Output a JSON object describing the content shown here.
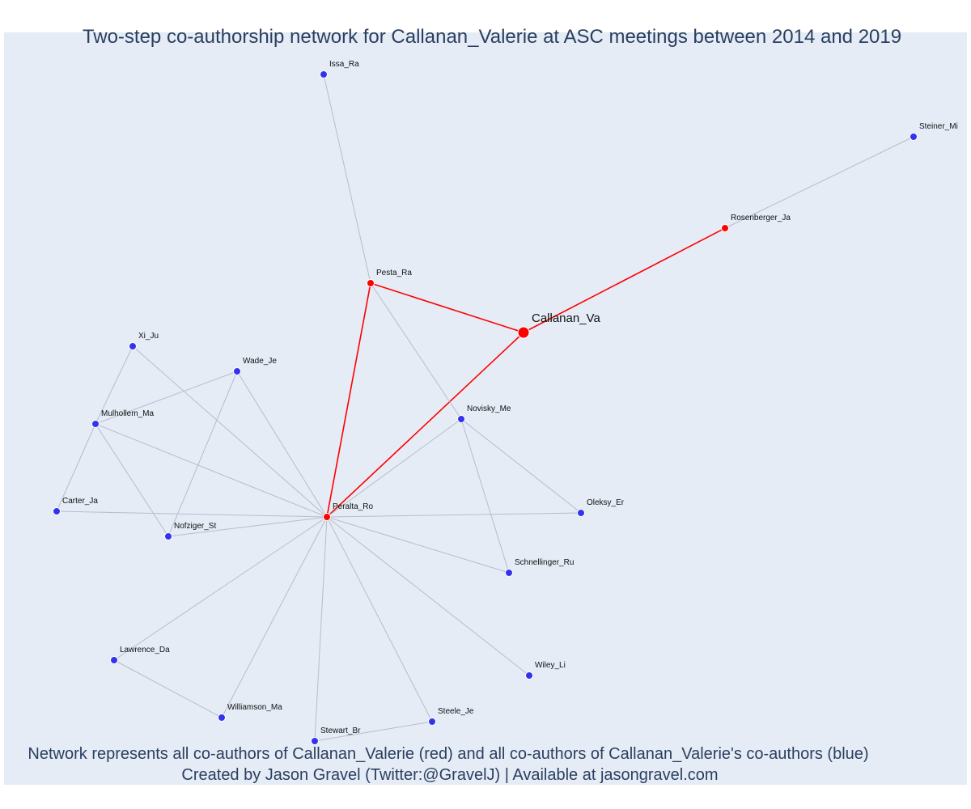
{
  "title": "Two-step co-authorship network for Callanan_Valerie at ASC meetings between 2014 and 2019",
  "caption": {
    "line1": "Network represents all co-authors of Callanan_Valerie (red) and all co-authors of Callanan_Valerie's co-authors (blue)",
    "line2": "Created by Jason Gravel (Twitter:@GravelJ) | Available at jasongravel.com"
  },
  "colors": {
    "background": "#e5ecf6",
    "first_step": "#ff0000",
    "second_step": "#3333ee",
    "edge": "#b8bccb"
  },
  "chart_data": {
    "type": "network",
    "center": "Callanan_Va",
    "nodes": [
      {
        "id": "Callanan_Va",
        "group": "center"
      },
      {
        "id": "Pesta_Ra",
        "group": "coauthor"
      },
      {
        "id": "Rosenberger_Ja",
        "group": "coauthor"
      },
      {
        "id": "Peralta_Ro",
        "group": "coauthor"
      },
      {
        "id": "Issa_Ra",
        "group": "second"
      },
      {
        "id": "Steiner_Mi",
        "group": "second"
      },
      {
        "id": "Xi_Ju",
        "group": "second"
      },
      {
        "id": "Wade_Je",
        "group": "second"
      },
      {
        "id": "Mulhollem_Ma",
        "group": "second"
      },
      {
        "id": "Novisky_Me",
        "group": "second"
      },
      {
        "id": "Carter_Ja",
        "group": "second"
      },
      {
        "id": "Nofziger_St",
        "group": "second"
      },
      {
        "id": "Oleksy_Er",
        "group": "second"
      },
      {
        "id": "Schnellinger_Ru",
        "group": "second"
      },
      {
        "id": "Lawrence_Da",
        "group": "second"
      },
      {
        "id": "Wiley_Li",
        "group": "second"
      },
      {
        "id": "Williamson_Ma",
        "group": "second"
      },
      {
        "id": "Steele_Je",
        "group": "second"
      },
      {
        "id": "Stewart_Br",
        "group": "second"
      }
    ],
    "edges": [
      [
        "Callanan_Va",
        "Pesta_Ra"
      ],
      [
        "Callanan_Va",
        "Rosenberger_Ja"
      ],
      [
        "Callanan_Va",
        "Peralta_Ro"
      ],
      [
        "Pesta_Ra",
        "Peralta_Ro"
      ],
      [
        "Rosenberger_Ja",
        "Steiner_Mi"
      ],
      [
        "Pesta_Ra",
        "Issa_Ra"
      ],
      [
        "Pesta_Ra",
        "Novisky_Me"
      ],
      [
        "Peralta_Ro",
        "Xi_Ju"
      ],
      [
        "Peralta_Ro",
        "Wade_Je"
      ],
      [
        "Peralta_Ro",
        "Mulhollem_Ma"
      ],
      [
        "Peralta_Ro",
        "Novisky_Me"
      ],
      [
        "Peralta_Ro",
        "Carter_Ja"
      ],
      [
        "Peralta_Ro",
        "Nofziger_St"
      ],
      [
        "Peralta_Ro",
        "Oleksy_Er"
      ],
      [
        "Peralta_Ro",
        "Schnellinger_Ru"
      ],
      [
        "Peralta_Ro",
        "Lawrence_Da"
      ],
      [
        "Peralta_Ro",
        "Wiley_Li"
      ],
      [
        "Peralta_Ro",
        "Williamson_Ma"
      ],
      [
        "Peralta_Ro",
        "Steele_Je"
      ],
      [
        "Peralta_Ro",
        "Stewart_Br"
      ],
      [
        "Xi_Ju",
        "Mulhollem_Ma"
      ],
      [
        "Wade_Je",
        "Mulhollem_Ma"
      ],
      [
        "Wade_Je",
        "Nofziger_St"
      ],
      [
        "Mulhollem_Ma",
        "Carter_Ja"
      ],
      [
        "Mulhollem_Ma",
        "Nofziger_St"
      ],
      [
        "Novisky_Me",
        "Oleksy_Er"
      ],
      [
        "Novisky_Me",
        "Schnellinger_Ru"
      ],
      [
        "Lawrence_Da",
        "Williamson_Ma"
      ],
      [
        "Stewart_Br",
        "Steele_Je"
      ]
    ]
  }
}
